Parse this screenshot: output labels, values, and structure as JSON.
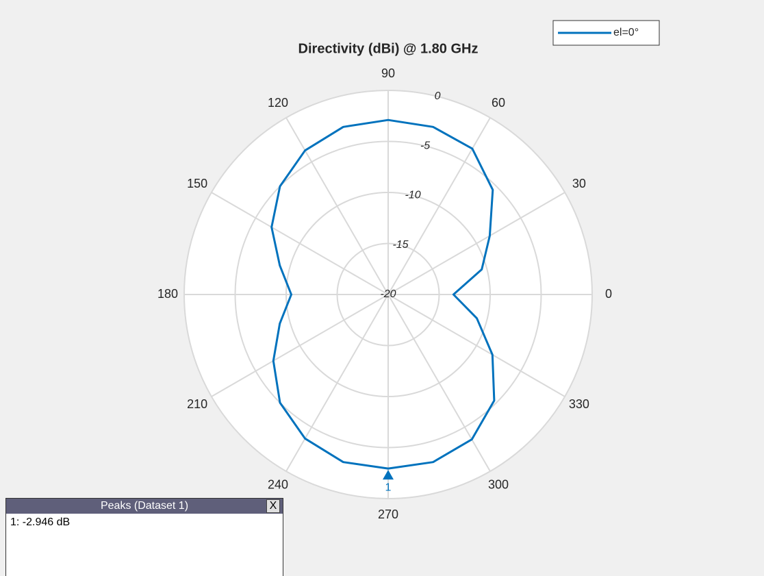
{
  "chart_data": {
    "type": "polar",
    "title": "Directivity (dBi) @ 1.80 GHz",
    "series": [
      {
        "name": "el=0°",
        "color": "#0072bd",
        "x": [
          0,
          15,
          30,
          45,
          60,
          75,
          90,
          105,
          120,
          135,
          150,
          165,
          180,
          195,
          210,
          225,
          240,
          255,
          270,
          285,
          300,
          315,
          330,
          345
        ],
        "values": [
          -13.6,
          -10.5,
          -8.5,
          -5.5,
          -3.5,
          -3.0,
          -2.9,
          -3.0,
          -3.7,
          -5.0,
          -6.8,
          -9.0,
          -10.5,
          -9.0,
          -7.0,
          -5.0,
          -3.7,
          -3.0,
          -2.946,
          -3.0,
          -3.6,
          -5.3,
          -8.2,
          -11.0
        ]
      }
    ],
    "xticks": [
      0,
      30,
      60,
      90,
      120,
      150,
      180,
      210,
      240,
      270,
      300,
      330
    ],
    "ylim": [
      -20,
      0
    ],
    "yticks": [
      -20,
      -15,
      -10,
      -5,
      0
    ],
    "grid": true,
    "legend": "top-right",
    "peak": {
      "label": "1",
      "x": 270,
      "value": -2.946
    }
  },
  "peaks_panel": {
    "title": "Peaks (Dataset 1)",
    "close": "X",
    "rows": [
      "1: -2.946 dB"
    ]
  }
}
